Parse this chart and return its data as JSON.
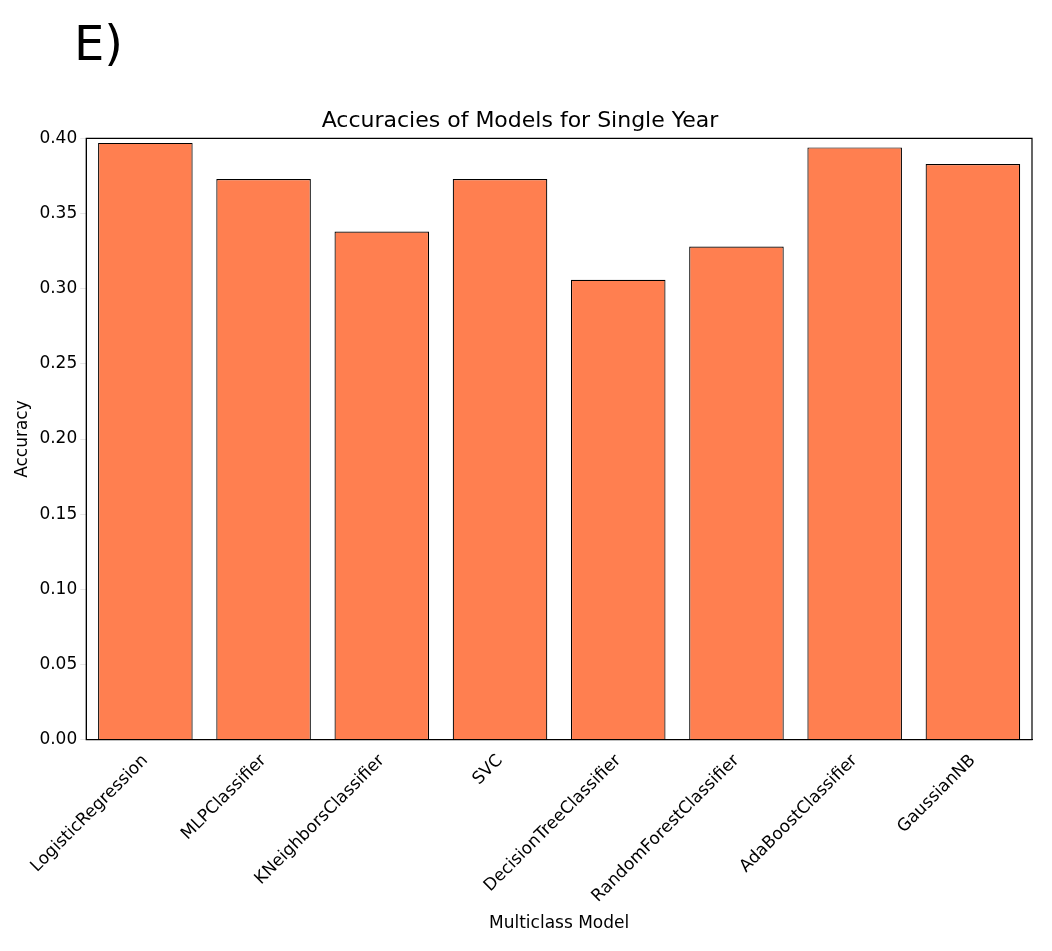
{
  "chart_data": {
    "type": "bar",
    "title": "Accuracies of Models for Single Year",
    "xlabel": "Multiclass Model",
    "ylabel": "Accuracy",
    "categories": [
      "LogisticRegression",
      "MLPClassifier",
      "KNeighborsClassifier",
      "SVC",
      "DecisionTreeClassifier",
      "RandomForestClassifier",
      "AdaBoostClassifier",
      "GaussianNB"
    ],
    "values": [
      0.397,
      0.373,
      0.338,
      0.373,
      0.306,
      0.328,
      0.394,
      0.383
    ],
    "color": "#ff7f50",
    "ylim": [
      0,
      0.4
    ],
    "yticks": [
      {
        "value": 0,
        "label": "0.00"
      },
      {
        "value": 0.05,
        "label": "0.05"
      },
      {
        "value": 0.1,
        "label": "0.10"
      },
      {
        "value": 0.15,
        "label": "0.15"
      },
      {
        "value": 0.2,
        "label": "0.20"
      },
      {
        "value": 0.25,
        "label": "0.25"
      },
      {
        "value": 0.3,
        "label": "0.30"
      },
      {
        "value": 0.35,
        "label": "0.35"
      },
      {
        "value": 0.4,
        "label": "0.40"
      }
    ],
    "grid": false,
    "legend": false,
    "annotations": [
      "E)"
    ]
  }
}
